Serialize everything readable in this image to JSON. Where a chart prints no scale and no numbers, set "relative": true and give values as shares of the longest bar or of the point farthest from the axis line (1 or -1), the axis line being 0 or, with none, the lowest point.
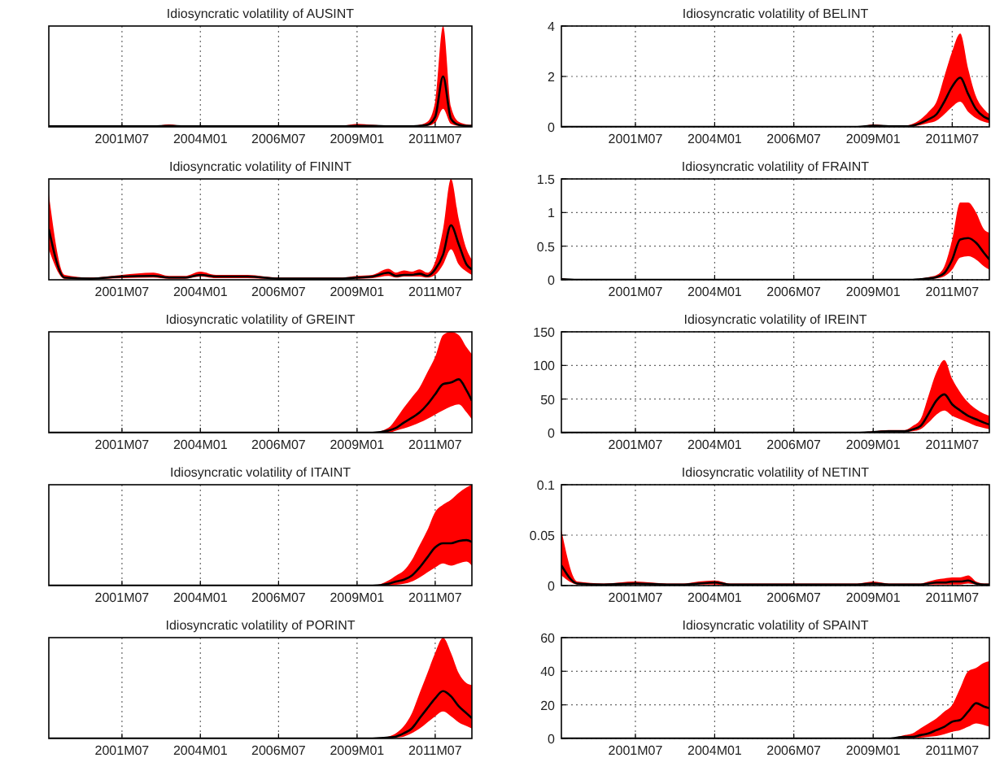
{
  "chart_data": [
    {
      "type": "line",
      "title": "Idiosyncratic volatility of AUSINT",
      "relative": true,
      "grid": "x",
      "xlim": [
        "1999-03",
        "2012-09"
      ],
      "xticks": [
        {
          "value": "2001-07",
          "label": "2001M07"
        },
        {
          "value": "2004-01",
          "label": "2004M01"
        },
        {
          "value": "2006-07",
          "label": "2006M07"
        },
        {
          "value": "2009-01",
          "label": "2009M01"
        },
        {
          "value": "2011-07",
          "label": "2011M07"
        }
      ],
      "x": [
        "1999-03",
        "1999-09",
        "2000-07",
        "2001-07",
        "2002-07",
        "2003-01",
        "2003-07",
        "2004-01",
        "2004-07",
        "2005-07",
        "2006-07",
        "2007-07",
        "2008-07",
        "2009-01",
        "2009-07",
        "2010-01",
        "2010-04",
        "2010-07",
        "2010-10",
        "2011-01",
        "2011-04",
        "2011-07",
        "2011-10",
        "2012-01",
        "2012-04",
        "2012-07",
        "2012-09"
      ],
      "series": [
        {
          "color": "#000000",
          "values": [
            0.01,
            0.01,
            0.01,
            0.01,
            0.01,
            0.02,
            0.01,
            0.01,
            0.01,
            0.01,
            0.01,
            0.01,
            0.01,
            0.02,
            0.02,
            0.01,
            0.01,
            0.01,
            0.01,
            0.02,
            0.04,
            0.2,
            1,
            0.16,
            0.04,
            0.02,
            0.02
          ],
          "upper": [
            0.02,
            0.02,
            0.02,
            0.02,
            0.02,
            0.05,
            0.02,
            0.02,
            0.02,
            0.02,
            0.02,
            0.02,
            0.02,
            0.06,
            0.04,
            0.02,
            0.02,
            0.02,
            0.02,
            0.04,
            0.1,
            0.5,
            2,
            0.4,
            0.1,
            0.05,
            0.04
          ],
          "lower": [
            0,
            0,
            0,
            0,
            0,
            0.01,
            0,
            0,
            0,
            0,
            0,
            0,
            0,
            0.01,
            0.01,
            0,
            0,
            0,
            0,
            0.01,
            0.02,
            0.08,
            0.36,
            0.06,
            0.02,
            0.01,
            0.01
          ]
        }
      ]
    },
    {
      "type": "line",
      "title": "Idiosyncratic volatility of BELINT",
      "grid": true,
      "ylim": [
        0,
        4
      ],
      "yticks": [
        0,
        2,
        4
      ],
      "xlim": [
        "1999-03",
        "2012-09"
      ],
      "xticks": [
        {
          "value": "2001-07",
          "label": "2001M07"
        },
        {
          "value": "2004-01",
          "label": "2004M01"
        },
        {
          "value": "2006-07",
          "label": "2006M07"
        },
        {
          "value": "2009-01",
          "label": "2009M01"
        },
        {
          "value": "2011-07",
          "label": "2011M07"
        }
      ],
      "x": [
        "1999-03",
        "1999-09",
        "2000-07",
        "2001-07",
        "2002-07",
        "2003-01",
        "2003-07",
        "2004-01",
        "2004-07",
        "2005-07",
        "2006-07",
        "2007-07",
        "2008-07",
        "2009-01",
        "2009-07",
        "2010-01",
        "2010-04",
        "2010-07",
        "2010-10",
        "2011-01",
        "2011-04",
        "2011-07",
        "2011-10",
        "2012-01",
        "2012-04",
        "2012-07",
        "2012-09"
      ],
      "series": [
        {
          "color": "#000000",
          "values": [
            0,
            0,
            0,
            0,
            0,
            0,
            0,
            0,
            0,
            0,
            0,
            0,
            0,
            0.05,
            0.02,
            0.02,
            0.05,
            0.15,
            0.3,
            0.5,
            1.0,
            1.6,
            1.95,
            1.3,
            0.7,
            0.4,
            0.3
          ],
          "upper": [
            0,
            0,
            0,
            0,
            0,
            0,
            0,
            0,
            0,
            0,
            0,
            0,
            0,
            0.1,
            0.05,
            0.05,
            0.12,
            0.3,
            0.6,
            1.0,
            2.0,
            3.0,
            3.7,
            2.3,
            1.2,
            0.7,
            0.5
          ],
          "lower": [
            0,
            0,
            0,
            0,
            0,
            0,
            0,
            0,
            0,
            0,
            0,
            0,
            0,
            0.02,
            0.01,
            0.01,
            0.02,
            0.07,
            0.15,
            0.25,
            0.5,
            0.8,
            1.0,
            0.6,
            0.35,
            0.2,
            0.15
          ]
        }
      ]
    },
    {
      "type": "line",
      "title": "Idiosyncratic volatility of FININT",
      "relative": true,
      "grid": "x",
      "xlim": [
        "1999-03",
        "2012-09"
      ],
      "xticks": [
        {
          "value": "2001-07",
          "label": "2001M07"
        },
        {
          "value": "2004-01",
          "label": "2004M01"
        },
        {
          "value": "2006-07",
          "label": "2006M07"
        },
        {
          "value": "2009-01",
          "label": "2009M01"
        },
        {
          "value": "2011-07",
          "label": "2011M07"
        }
      ],
      "x": [
        "1999-03",
        "1999-09",
        "2000-07",
        "2001-07",
        "2002-07",
        "2003-01",
        "2003-07",
        "2004-01",
        "2004-07",
        "2005-07",
        "2006-07",
        "2007-07",
        "2008-07",
        "2009-01",
        "2009-07",
        "2010-01",
        "2010-04",
        "2010-07",
        "2010-10",
        "2011-01",
        "2011-04",
        "2011-07",
        "2011-10",
        "2012-01",
        "2012-04",
        "2012-07",
        "2012-09"
      ],
      "series": [
        {
          "color": "#000000",
          "values": [
            0.93,
            0.04,
            0.02,
            0.06,
            0.07,
            0.04,
            0.04,
            0.09,
            0.06,
            0.06,
            0.02,
            0.02,
            0.02,
            0.04,
            0.06,
            0.13,
            0.07,
            0.09,
            0.09,
            0.11,
            0.07,
            0.19,
            0.46,
            1,
            0.65,
            0.28,
            0.19
          ],
          "upper": [
            1.57,
            0.09,
            0.04,
            0.09,
            0.13,
            0.07,
            0.07,
            0.15,
            0.09,
            0.09,
            0.04,
            0.04,
            0.04,
            0.07,
            0.09,
            0.2,
            0.13,
            0.17,
            0.15,
            0.19,
            0.13,
            0.33,
            0.93,
            1.85,
            1.11,
            0.56,
            0.37
          ],
          "lower": [
            0.56,
            0.02,
            0.01,
            0.03,
            0.04,
            0.02,
            0.02,
            0.06,
            0.03,
            0.03,
            0.01,
            0.01,
            0.01,
            0.02,
            0.03,
            0.07,
            0.04,
            0.06,
            0.06,
            0.06,
            0.04,
            0.09,
            0.28,
            0.56,
            0.28,
            0.15,
            0.09
          ]
        }
      ]
    },
    {
      "type": "line",
      "title": "Idiosyncratic volatility of FRAINT",
      "grid": true,
      "ylim": [
        0,
        1.5
      ],
      "yticks": [
        0,
        0.5,
        1,
        1.5
      ],
      "xlim": [
        "1999-03",
        "2012-09"
      ],
      "xticks": [
        {
          "value": "2001-07",
          "label": "2001M07"
        },
        {
          "value": "2004-01",
          "label": "2004M01"
        },
        {
          "value": "2006-07",
          "label": "2006M07"
        },
        {
          "value": "2009-01",
          "label": "2009M01"
        },
        {
          "value": "2011-07",
          "label": "2011M07"
        }
      ],
      "x": [
        "1999-03",
        "1999-09",
        "2000-07",
        "2001-07",
        "2002-07",
        "2003-01",
        "2003-07",
        "2004-01",
        "2004-07",
        "2005-07",
        "2006-07",
        "2007-07",
        "2008-07",
        "2009-01",
        "2009-07",
        "2010-01",
        "2010-04",
        "2010-07",
        "2010-10",
        "2011-01",
        "2011-04",
        "2011-07",
        "2011-10",
        "2012-01",
        "2012-04",
        "2012-07",
        "2012-09"
      ],
      "series": [
        {
          "color": "#000000",
          "values": [
            0.01,
            0,
            0,
            0,
            0,
            0,
            0,
            0,
            0,
            0,
            0,
            0,
            0,
            0,
            0,
            0,
            0,
            0.01,
            0.02,
            0.04,
            0.1,
            0.3,
            0.6,
            0.62,
            0.55,
            0.4,
            0.3
          ],
          "upper": [
            0.02,
            0,
            0,
            0,
            0,
            0,
            0,
            0,
            0,
            0,
            0,
            0,
            0,
            0,
            0,
            0,
            0,
            0.02,
            0.04,
            0.07,
            0.2,
            0.6,
            1.15,
            1.15,
            1.0,
            0.75,
            0.7
          ],
          "lower": [
            0,
            0,
            0,
            0,
            0,
            0,
            0,
            0,
            0,
            0,
            0,
            0,
            0,
            0,
            0,
            0,
            0,
            0.005,
            0.01,
            0.02,
            0.05,
            0.15,
            0.33,
            0.35,
            0.3,
            0.2,
            0.15
          ]
        }
      ]
    },
    {
      "type": "line",
      "title": "Idiosyncratic volatility of GREINT",
      "relative": true,
      "grid": "x",
      "xlim": [
        "1999-03",
        "2012-09"
      ],
      "xticks": [
        {
          "value": "2001-07",
          "label": "2001M07"
        },
        {
          "value": "2004-01",
          "label": "2004M01"
        },
        {
          "value": "2006-07",
          "label": "2006M07"
        },
        {
          "value": "2009-01",
          "label": "2009M01"
        },
        {
          "value": "2011-07",
          "label": "2011M07"
        }
      ],
      "x": [
        "1999-03",
        "1999-09",
        "2000-07",
        "2001-07",
        "2002-07",
        "2003-01",
        "2003-07",
        "2004-01",
        "2004-07",
        "2005-07",
        "2006-07",
        "2007-07",
        "2008-07",
        "2009-01",
        "2009-07",
        "2010-01",
        "2010-04",
        "2010-07",
        "2010-10",
        "2011-01",
        "2011-04",
        "2011-07",
        "2011-10",
        "2012-01",
        "2012-04",
        "2012-07",
        "2012-09"
      ],
      "series": [
        {
          "color": "#000000",
          "values": [
            0,
            0,
            0,
            0,
            0,
            0,
            0,
            0,
            0,
            0,
            0,
            0,
            0,
            0,
            0,
            0.04,
            0.09,
            0.19,
            0.28,
            0.38,
            0.53,
            0.72,
            0.91,
            0.94,
            1,
            0.79,
            0.6
          ],
          "upper": [
            0,
            0,
            0,
            0,
            0,
            0,
            0,
            0,
            0,
            0,
            0,
            0,
            0,
            0,
            0,
            0.09,
            0.26,
            0.47,
            0.66,
            0.85,
            1.13,
            1.42,
            1.83,
            1.89,
            1.83,
            1.6,
            1.47
          ],
          "lower": [
            0,
            0,
            0,
            0,
            0,
            0,
            0,
            0,
            0,
            0,
            0,
            0,
            0,
            0,
            0,
            0,
            0.04,
            0.08,
            0.13,
            0.19,
            0.26,
            0.34,
            0.42,
            0.49,
            0.53,
            0.38,
            0.25
          ]
        }
      ]
    },
    {
      "type": "line",
      "title": "Idiosyncratic volatility of IREINT",
      "grid": true,
      "ylim": [
        0,
        150
      ],
      "yticks": [
        0,
        50,
        100,
        150
      ],
      "xlim": [
        "1999-03",
        "2012-09"
      ],
      "xticks": [
        {
          "value": "2001-07",
          "label": "2001M07"
        },
        {
          "value": "2004-01",
          "label": "2004M01"
        },
        {
          "value": "2006-07",
          "label": "2006M07"
        },
        {
          "value": "2009-01",
          "label": "2009M01"
        },
        {
          "value": "2011-07",
          "label": "2011M07"
        }
      ],
      "x": [
        "1999-03",
        "1999-09",
        "2000-07",
        "2001-07",
        "2002-07",
        "2003-01",
        "2003-07",
        "2004-01",
        "2004-07",
        "2005-07",
        "2006-07",
        "2007-07",
        "2008-07",
        "2009-01",
        "2009-07",
        "2010-01",
        "2010-04",
        "2010-07",
        "2010-10",
        "2011-01",
        "2011-04",
        "2011-07",
        "2011-10",
        "2012-01",
        "2012-04",
        "2012-07",
        "2012-09"
      ],
      "series": [
        {
          "color": "#000000",
          "values": [
            0,
            0,
            0,
            0,
            0,
            0,
            0,
            0,
            0,
            0,
            0,
            0,
            0,
            1,
            2,
            2,
            5,
            10,
            28,
            48,
            57,
            42,
            33,
            25,
            20,
            15,
            12
          ],
          "upper": [
            0,
            0,
            0,
            0,
            0,
            0,
            0,
            0,
            0,
            0,
            0,
            0,
            0,
            2,
            4,
            4,
            10,
            20,
            55,
            90,
            108,
            80,
            60,
            45,
            35,
            28,
            25
          ],
          "lower": [
            0,
            0,
            0,
            0,
            0,
            0,
            0,
            0,
            0,
            0,
            0,
            0,
            0,
            0.5,
            1,
            1,
            2,
            5,
            15,
            27,
            33,
            25,
            20,
            15,
            10,
            7,
            5
          ]
        }
      ]
    },
    {
      "type": "line",
      "title": "Idiosyncratic volatility of ITAINT",
      "relative": true,
      "grid": "x",
      "xlim": [
        "1999-03",
        "2012-09"
      ],
      "xticks": [
        {
          "value": "2001-07",
          "label": "2001M07"
        },
        {
          "value": "2004-01",
          "label": "2004M01"
        },
        {
          "value": "2006-07",
          "label": "2006M07"
        },
        {
          "value": "2009-01",
          "label": "2009M01"
        },
        {
          "value": "2011-07",
          "label": "2011M07"
        }
      ],
      "x": [
        "1999-03",
        "1999-09",
        "2000-07",
        "2001-07",
        "2002-07",
        "2003-01",
        "2003-07",
        "2004-01",
        "2004-07",
        "2005-07",
        "2006-07",
        "2007-07",
        "2008-07",
        "2009-01",
        "2009-07",
        "2010-01",
        "2010-04",
        "2010-07",
        "2010-10",
        "2011-01",
        "2011-04",
        "2011-07",
        "2011-10",
        "2012-01",
        "2012-04",
        "2012-07",
        "2012-09"
      ],
      "series": [
        {
          "color": "#000000",
          "values": [
            0,
            0,
            0,
            0,
            0,
            0,
            0,
            0,
            0,
            0,
            0,
            0,
            0,
            0,
            0,
            0.04,
            0.09,
            0.13,
            0.22,
            0.4,
            0.62,
            0.84,
            0.93,
            0.93,
            0.98,
            1,
            0.96
          ],
          "upper": [
            0,
            0,
            0,
            0,
            0,
            0,
            0,
            0,
            0,
            0,
            0,
            0,
            0,
            0,
            0,
            0.11,
            0.22,
            0.33,
            0.56,
            0.89,
            1.22,
            1.62,
            1.78,
            1.89,
            2.04,
            2.16,
            2.22
          ],
          "lower": [
            0,
            0,
            0,
            0,
            0,
            0,
            0,
            0,
            0,
            0,
            0,
            0,
            0,
            0,
            0,
            0,
            0.02,
            0.04,
            0.09,
            0.18,
            0.29,
            0.4,
            0.49,
            0.44,
            0.49,
            0.53,
            0.44
          ]
        }
      ]
    },
    {
      "type": "line",
      "title": "Idiosyncratic volatility of NETINT",
      "grid": true,
      "ylim": [
        0,
        0.1
      ],
      "yticks": [
        0,
        0.05,
        0.1
      ],
      "xlim": [
        "1999-03",
        "2012-09"
      ],
      "xticks": [
        {
          "value": "2001-07",
          "label": "2001M07"
        },
        {
          "value": "2004-01",
          "label": "2004M01"
        },
        {
          "value": "2006-07",
          "label": "2006M07"
        },
        {
          "value": "2009-01",
          "label": "2009M01"
        },
        {
          "value": "2011-07",
          "label": "2011M07"
        }
      ],
      "x": [
        "1999-03",
        "1999-09",
        "2000-07",
        "2001-07",
        "2002-07",
        "2003-01",
        "2003-07",
        "2004-01",
        "2004-07",
        "2005-07",
        "2006-07",
        "2007-07",
        "2008-07",
        "2009-01",
        "2009-07",
        "2010-01",
        "2010-04",
        "2010-07",
        "2010-10",
        "2011-01",
        "2011-04",
        "2011-07",
        "2011-10",
        "2012-01",
        "2012-04",
        "2012-07",
        "2012-09"
      ],
      "series": [
        {
          "color": "#000000",
          "values": [
            0.02,
            0.002,
            0.001,
            0.002,
            0.001,
            0.001,
            0.002,
            0.003,
            0.001,
            0.001,
            0.001,
            0.001,
            0.001,
            0.002,
            0.001,
            0.001,
            0.001,
            0.001,
            0.002,
            0.003,
            0.003,
            0.004,
            0.004,
            0.005,
            0.002,
            0.001,
            0.001
          ],
          "upper": [
            0.055,
            0.004,
            0.002,
            0.004,
            0.002,
            0.002,
            0.004,
            0.005,
            0.002,
            0.002,
            0.002,
            0.002,
            0.002,
            0.004,
            0.002,
            0.002,
            0.002,
            0.002,
            0.004,
            0.006,
            0.007,
            0.008,
            0.008,
            0.01,
            0.004,
            0.002,
            0.002
          ],
          "lower": [
            0.01,
            0.001,
            0,
            0.001,
            0,
            0,
            0.001,
            0.001,
            0,
            0,
            0,
            0,
            0,
            0.001,
            0,
            0,
            0,
            0,
            0.001,
            0.001,
            0.001,
            0.001,
            0.001,
            0.002,
            0.001,
            0,
            0
          ]
        }
      ]
    },
    {
      "type": "line",
      "title": "Idiosyncratic volatility of PORINT",
      "relative": true,
      "grid": "x",
      "xlim": [
        "1999-03",
        "2012-09"
      ],
      "xticks": [
        {
          "value": "2001-07",
          "label": "2001M07"
        },
        {
          "value": "2004-01",
          "label": "2004M01"
        },
        {
          "value": "2006-07",
          "label": "2006M07"
        },
        {
          "value": "2009-01",
          "label": "2009M01"
        },
        {
          "value": "2011-07",
          "label": "2011M07"
        }
      ],
      "x": [
        "1999-03",
        "1999-09",
        "2000-07",
        "2001-07",
        "2002-07",
        "2003-01",
        "2003-07",
        "2004-01",
        "2004-07",
        "2005-07",
        "2006-07",
        "2007-07",
        "2008-07",
        "2009-01",
        "2009-07",
        "2010-01",
        "2010-04",
        "2010-07",
        "2010-10",
        "2011-01",
        "2011-04",
        "2011-07",
        "2011-10",
        "2012-01",
        "2012-04",
        "2012-07",
        "2012-09"
      ],
      "series": [
        {
          "color": "#000000",
          "values": [
            0,
            0,
            0,
            0,
            0,
            0,
            0,
            0,
            0,
            0,
            0,
            0,
            0,
            0,
            0,
            0.02,
            0.04,
            0.11,
            0.21,
            0.43,
            0.64,
            0.85,
            1,
            0.89,
            0.68,
            0.53,
            0.43
          ],
          "upper": [
            0,
            0,
            0,
            0,
            0,
            0,
            0,
            0,
            0,
            0,
            0,
            0,
            0,
            0,
            0,
            0.04,
            0.11,
            0.26,
            0.53,
            0.96,
            1.38,
            1.81,
            2.13,
            1.81,
            1.38,
            1.17,
            1.13
          ],
          "lower": [
            0,
            0,
            0,
            0,
            0,
            0,
            0,
            0,
            0,
            0,
            0,
            0,
            0,
            0,
            0,
            0,
            0.02,
            0.04,
            0.11,
            0.21,
            0.34,
            0.47,
            0.57,
            0.47,
            0.34,
            0.26,
            0.21
          ]
        }
      ]
    },
    {
      "type": "line",
      "title": "Idiosyncratic volatility of SPAINT",
      "grid": true,
      "ylim": [
        0,
        60
      ],
      "yticks": [
        0,
        20,
        40,
        60
      ],
      "xlim": [
        "1999-03",
        "2012-09"
      ],
      "xticks": [
        {
          "value": "2001-07",
          "label": "2001M07"
        },
        {
          "value": "2004-01",
          "label": "2004M01"
        },
        {
          "value": "2006-07",
          "label": "2006M07"
        },
        {
          "value": "2009-01",
          "label": "2009M01"
        },
        {
          "value": "2011-07",
          "label": "2011M07"
        }
      ],
      "x": [
        "1999-03",
        "1999-09",
        "2000-07",
        "2001-07",
        "2002-07",
        "2003-01",
        "2003-07",
        "2004-01",
        "2004-07",
        "2005-07",
        "2006-07",
        "2007-07",
        "2008-07",
        "2009-01",
        "2009-07",
        "2010-01",
        "2010-04",
        "2010-07",
        "2010-10",
        "2011-01",
        "2011-04",
        "2011-07",
        "2011-10",
        "2012-01",
        "2012-04",
        "2012-07",
        "2012-09"
      ],
      "series": [
        {
          "color": "#000000",
          "values": [
            0,
            0,
            0,
            0,
            0,
            0,
            0,
            0,
            0,
            0,
            0,
            0,
            0,
            0,
            0,
            1,
            1,
            2,
            3,
            5,
            7,
            10,
            11,
            16,
            21,
            19,
            18
          ],
          "upper": [
            0,
            0,
            0,
            0,
            0,
            0,
            0,
            0,
            0,
            0,
            0,
            0,
            0,
            0,
            0,
            2,
            3,
            6,
            9,
            12,
            16,
            20,
            30,
            40,
            42,
            45,
            46
          ],
          "lower": [
            0,
            0,
            0,
            0,
            0,
            0,
            0,
            0,
            0,
            0,
            0,
            0,
            0,
            0,
            0,
            0,
            0.3,
            0.5,
            1,
            1.5,
            2.5,
            4,
            5,
            7,
            9,
            8,
            7
          ]
        }
      ]
    }
  ]
}
